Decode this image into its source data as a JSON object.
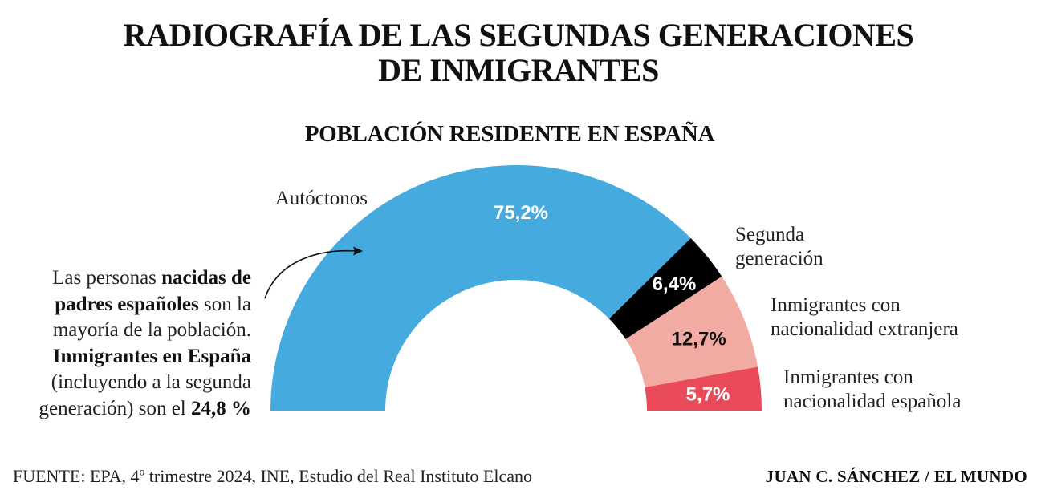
{
  "title_line1": "RADIOGRAFÍA DE LAS SEGUNDAS GENERACIONES",
  "title_line2": "DE INMIGRANTES",
  "subtitle": "POBLACIÓN RESIDENTE EN ESPAÑA",
  "note": {
    "t1": "Las personas ",
    "b1": "nacidas de padres españoles",
    "t2": " son la mayoría de la población. ",
    "b2": "Inmigrantes en España",
    "t3": " (incluyendo a la segunda generación) son el ",
    "b3": "24,8 %"
  },
  "source": "FUENTE: EPA, 4º trimestre 2024, INE, Estudio del Real Instituto Elcano",
  "credit": "JUAN C. SÁNCHEZ / EL MUNDO",
  "chart_data": {
    "type": "pie",
    "variant": "half-donut",
    "series": [
      {
        "label_lines": [
          "Autóctonos"
        ],
        "value": 75.2,
        "value_label": "75,2%",
        "color": "#45abdf",
        "value_color": "#ffffff"
      },
      {
        "label_lines": [
          "Segunda",
          "generación"
        ],
        "value": 6.4,
        "value_label": "6,4%",
        "color": "#000000",
        "value_color": "#ffffff"
      },
      {
        "label_lines": [
          "Inmigrantes con",
          "nacionalidad extranjera"
        ],
        "value": 12.7,
        "value_label": "12,7%",
        "color": "#f2aba2",
        "value_color": "#111111"
      },
      {
        "label_lines": [
          "Inmigrantes con",
          "nacionalidad española"
        ],
        "value": 5.7,
        "value_label": "5,7%",
        "color": "#e94b5a",
        "value_color": "#ffffff"
      }
    ]
  }
}
